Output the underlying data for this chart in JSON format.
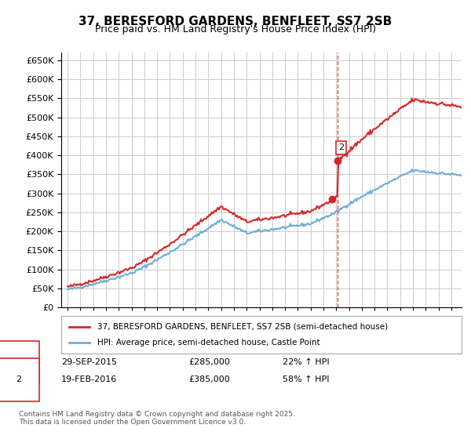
{
  "title": "37, BERESFORD GARDENS, BENFLEET, SS7 2SB",
  "subtitle": "Price paid vs. HM Land Registry's House Price Index (HPI)",
  "ylabel": "",
  "ylim": [
    0,
    670000
  ],
  "yticks": [
    0,
    50000,
    100000,
    150000,
    200000,
    250000,
    300000,
    350000,
    400000,
    450000,
    500000,
    550000,
    600000,
    650000
  ],
  "sale1_date": "29-SEP-2015",
  "sale1_price": 285000,
  "sale1_hpi": "22% ↑ HPI",
  "sale2_date": "19-FEB-2016",
  "sale2_price": 385000,
  "sale2_hpi": "58% ↑ HPI",
  "legend_line1": "37, BERESFORD GARDENS, BENFLEET, SS7 2SB (semi-detached house)",
  "legend_line2": "HPI: Average price, semi-detached house, Castle Point",
  "footer": "Contains HM Land Registry data © Crown copyright and database right 2025.\nThis data is licensed under the Open Government Licence v3.0.",
  "hpi_color": "#6baed6",
  "price_color": "#d62728",
  "vline_color": "#d62728",
  "background_color": "#ffffff",
  "grid_color": "#cccccc"
}
